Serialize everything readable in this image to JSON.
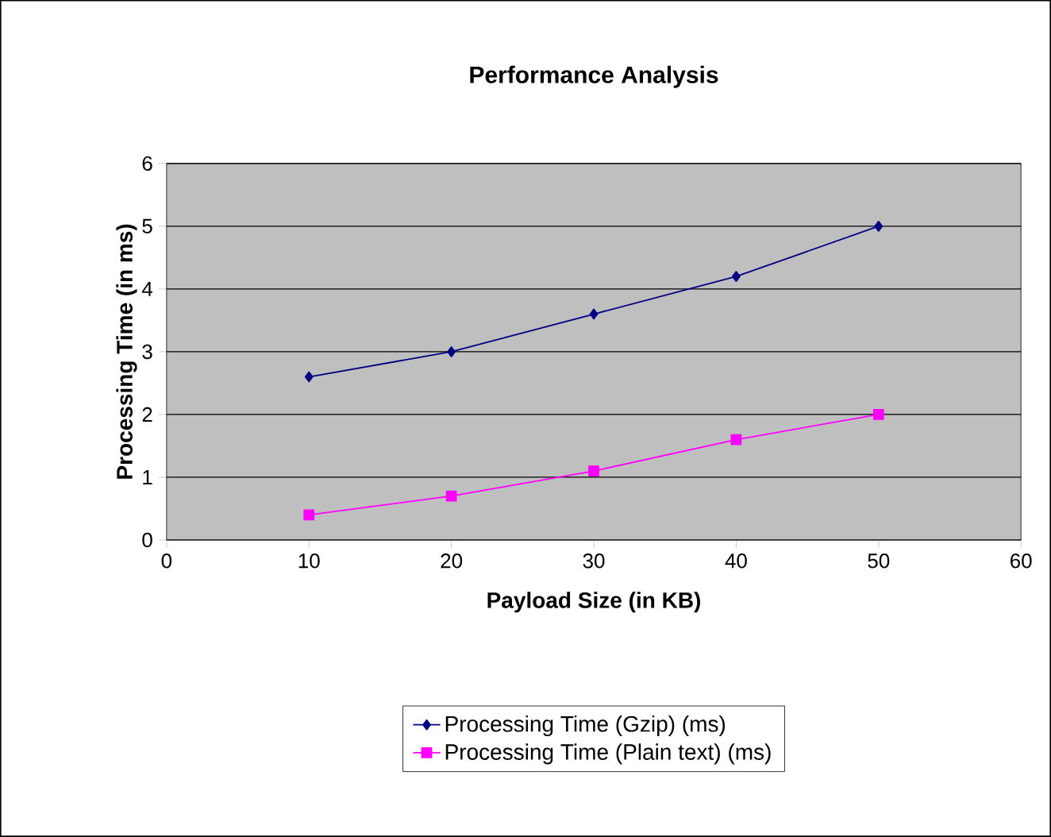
{
  "chart_data": {
    "type": "line",
    "title": "Performance Analysis",
    "xlabel": "Payload Size (in KB)",
    "ylabel": "Processing Time (in ms)",
    "x": [
      10,
      20,
      30,
      40,
      50
    ],
    "series": [
      {
        "name": "Processing Time (Gzip) (ms)",
        "color": "#000080",
        "marker": "diamond",
        "values": [
          2.6,
          3.0,
          3.6,
          4.2,
          5.0
        ]
      },
      {
        "name": "Processing Time (Plain text) (ms)",
        "color": "#ff00ff",
        "marker": "square",
        "values": [
          0.4,
          0.7,
          1.1,
          1.6,
          2.0
        ]
      }
    ],
    "xlim": [
      0,
      60
    ],
    "xticks": [
      0,
      10,
      20,
      30,
      40,
      50,
      60
    ],
    "ylim": [
      0,
      6
    ],
    "yticks": [
      0,
      1,
      2,
      3,
      4,
      5,
      6
    ],
    "grid": "y",
    "legend": "bottom",
    "line_style": "solid"
  }
}
